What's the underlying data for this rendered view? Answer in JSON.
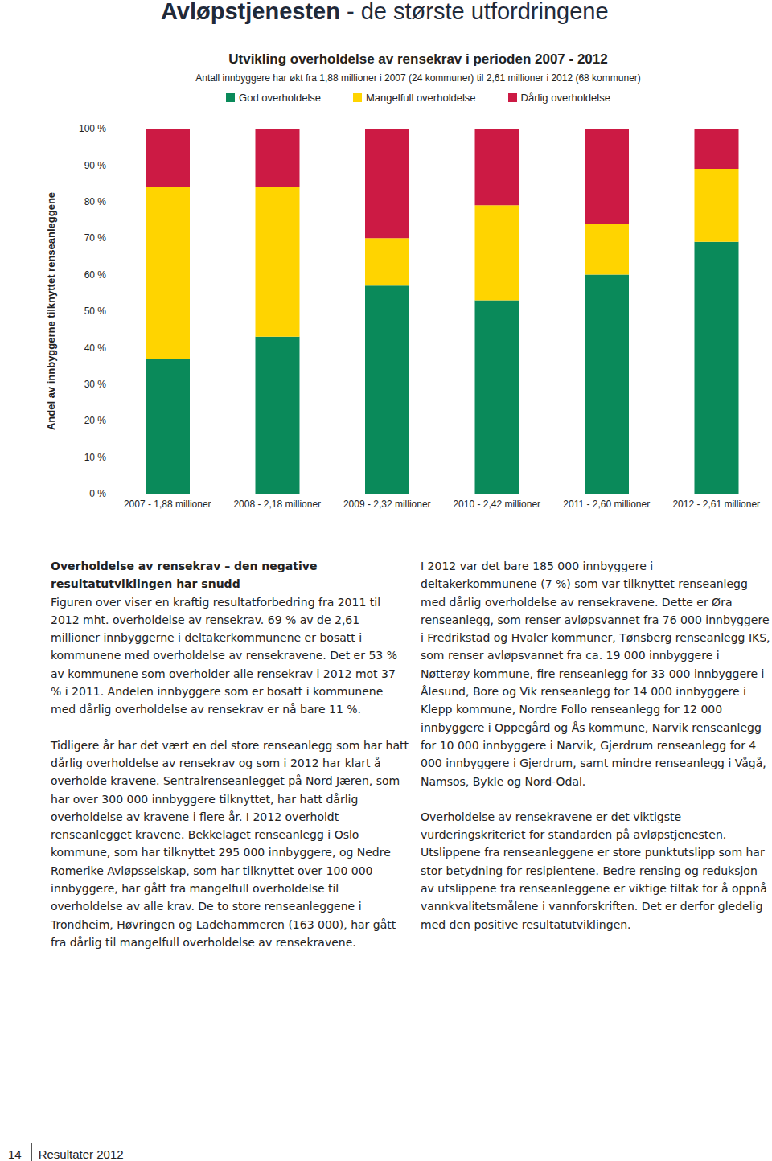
{
  "header": {
    "title_bold": "Avløpstjenesten",
    "title_rest": " - de største utfordringene"
  },
  "chart_data": {
    "type": "bar",
    "title": "Utvikling overholdelse av rensekrav i perioden 2007 - 2012",
    "subtitle": "Antall innbyggere har økt fra 1,88 millioner i 2007 (24 kommuner) til 2,61 millioner i 2012 (68 kommuner)",
    "y_label": "Andel av innbyggerne tilknyttet renseanleggene",
    "categories": [
      "2007 - 1,88 millioner",
      "2008 - 2,18 millioner",
      "2009 - 2,32 millioner",
      "2010 - 2,42 millioner",
      "2011 - 2,60 millioner",
      "2012 - 2,61 millioner"
    ],
    "series": [
      {
        "name": "God overholdelse",
        "color": "#0a8a5a",
        "values": [
          37,
          43,
          57,
          53,
          60,
          69
        ]
      },
      {
        "name": "Mangelfull overholdelse",
        "color": "#ffd400",
        "values": [
          47,
          41,
          13,
          26,
          14,
          20
        ]
      },
      {
        "name": "Dårlig overholdelse",
        "color": "#cc1a44",
        "values": [
          16,
          16,
          30,
          21,
          26,
          11
        ]
      }
    ],
    "stacked": true,
    "grid": false,
    "legend": "top",
    "ylim": [
      0,
      100
    ],
    "yticks": [
      {
        "value": 0,
        "label": "0 %"
      },
      {
        "value": 10,
        "label": "10 %"
      },
      {
        "value": 20,
        "label": "20 %"
      },
      {
        "value": 30,
        "label": "30 %"
      },
      {
        "value": 40,
        "label": "40 %"
      },
      {
        "value": 50,
        "label": "50 %"
      },
      {
        "value": 60,
        "label": "60 %"
      },
      {
        "value": 70,
        "label": "70 %"
      },
      {
        "value": 80,
        "label": "80 %"
      },
      {
        "value": 90,
        "label": "90 %"
      },
      {
        "value": 100,
        "label": "100 %"
      }
    ]
  },
  "text": {
    "left": [
      {
        "heading": "Overholdelse av rensekrav – den negative resultatutviklingen har snudd",
        "body": "Figuren over viser en kraftig resultatforbedring fra 2011 til 2012 mht. overholdelse av rensekrav. 69 % av de 2,61 millioner innbyggerne i deltakerkommunene er bosatt i kommunene med overholdelse av rensekravene. Det er 53 % av kommunene som overholder alle rensekrav i 2012 mot 37 % i 2011. Andelen innbyggere som er bosatt i kommunene med dårlig overholdelse av rensekrav er nå bare 11 %."
      },
      {
        "body": "Tidligere år har det vært en del store renseanlegg som har hatt dårlig overholdelse av rensekrav og som i 2012 har klart å overholde kravene. Sentralrenseanlegget på Nord Jæren, som har over 300 000 innbyggere tilknyttet, har hatt dårlig overholdelse av kravene i flere år. I 2012 overholdt renseanlegget kravene. Bekkelaget renseanlegg i Oslo kommune, som har tilknyttet 295 000 innbyggere, og Nedre Romerike Avløpsselskap, som har tilknyttet over 100 000 innbyggere, har gått fra mangelfull overholdelse til overholdelse av alle krav. De to store renseanleggene i Trondheim, Høvringen og Ladehammeren (163 000), har gått fra dårlig til mangelfull overholdelse av rensekravene."
      }
    ],
    "right": [
      {
        "body": "I 2012 var det bare 185 000 innbyggere i deltakerkommunene (7 %) som var tilknyttet renseanlegg med dårlig overholdelse av rensekravene. Dette er Øra renseanlegg, som renser avløpsvannet fra 76 000 innbyggere i Fredrikstad og Hvaler kommuner, Tønsberg renseanlegg IKS, som renser avløpsvannet fra ca. 19 000 innbyggere i Nøtterøy kommune, fire renseanlegg for 33 000 innbyggere i Ålesund, Bore og Vik renseanlegg for 14 000 innbyggere i Klepp kommune, Nordre Follo renseanlegg for 12 000 innbyggere i Oppegård og Ås kommune, Narvik renseanlegg for 10 000 innbyggere i Narvik, Gjerdrum renseanlegg for 4 000 innbyggere i Gjerdrum, samt mindre renseanlegg i Vågå, Namsos, Bykle og Nord-Odal."
      },
      {
        "body": "Overholdelse av rensekravene er det viktigste vurderingskriteriet for standarden på avløpstjenesten. Utslippene fra renseanleggene er store punktutslipp som har stor betydning for resipientene. Bedre rensing og reduksjon av utslippene fra renseanleggene er viktige tiltak for å oppnå vannkvalitetsmålene i vannforskriften. Det er derfor gledelig med den positive resultatutviklingen."
      }
    ]
  },
  "footer": {
    "page": "14",
    "label": "Resultater 2012"
  }
}
